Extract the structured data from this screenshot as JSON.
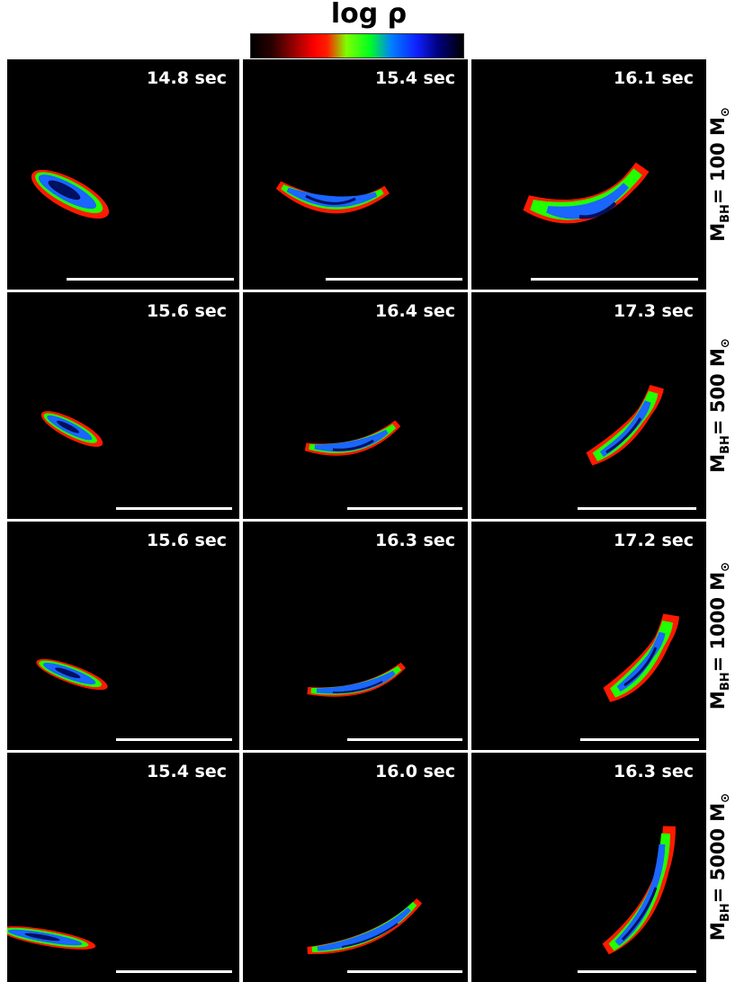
{
  "colorbar": {
    "title": "log ρ"
  },
  "rows": [
    {
      "label_main": "M",
      "label_sub": "BH",
      "label_rest": "= 100 M",
      "label_sun": "⊙",
      "panels": [
        {
          "time": "14.8 sec"
        },
        {
          "time": "15.4 sec"
        },
        {
          "time": "16.1 sec"
        }
      ]
    },
    {
      "label_main": "M",
      "label_sub": "BH",
      "label_rest": "= 500 M",
      "label_sun": "⊙",
      "panels": [
        {
          "time": "15.6 sec"
        },
        {
          "time": "16.4 sec"
        },
        {
          "time": "17.3 sec"
        }
      ]
    },
    {
      "label_main": "M",
      "label_sub": "BH",
      "label_rest": "= 1000 M",
      "label_sun": "⊙",
      "panels": [
        {
          "time": "15.6 sec"
        },
        {
          "time": "16.3 sec"
        },
        {
          "time": "17.2 sec"
        }
      ]
    },
    {
      "label_main": "M",
      "label_sub": "BH",
      "label_rest": "= 5000 M",
      "label_sun": "⊙",
      "panels": [
        {
          "time": "15.4 sec"
        },
        {
          "time": "16.0 sec"
        },
        {
          "time": "16.3 sec"
        }
      ]
    }
  ]
}
